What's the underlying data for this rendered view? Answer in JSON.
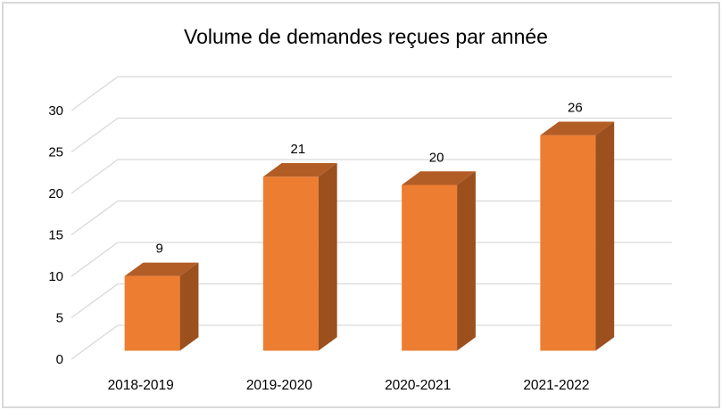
{
  "chart_data": {
    "type": "bar",
    "style": "3d-column",
    "title": "Volume de demandes reçues par année",
    "categories": [
      "2018-2019",
      "2019-2020",
      "2020-2021",
      "2021-2022"
    ],
    "values": [
      9,
      21,
      20,
      26
    ],
    "data_labels": [
      "9",
      "21",
      "20",
      "26"
    ],
    "xlabel": "",
    "ylabel": "",
    "ylim": [
      0,
      30
    ],
    "ytick_step": 5,
    "ytick_labels": [
      "0",
      "5",
      "10",
      "15",
      "20",
      "25",
      "30"
    ],
    "legend": "none",
    "grid": "on",
    "colors": {
      "bar_front": "#ED7D31",
      "bar_top": "#B35D26",
      "bar_side": "#9B501E",
      "gridline": "#D9D9D9",
      "frame_border": "#D9D9D9",
      "text": "#000000",
      "background": "#FFFFFF"
    }
  }
}
